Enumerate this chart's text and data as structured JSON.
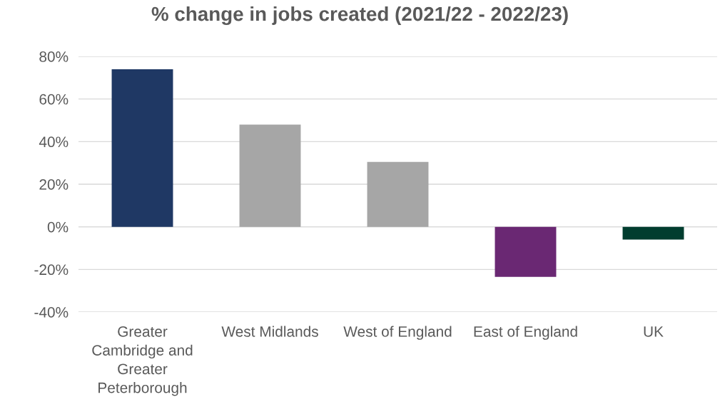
{
  "chart_data": {
    "type": "bar",
    "title": "% change in jobs created (2021/22 - 2022/23)",
    "categories": [
      "Greater\nCambridge and\nGreater\nPeterborough",
      "West Midlands",
      "West of England",
      "East of England",
      "UK"
    ],
    "values": [
      74,
      48,
      30.5,
      -23.5,
      -6
    ],
    "colors": [
      "#1f3864",
      "#a6a6a6",
      "#a6a6a6",
      "#6a2873",
      "#013d2f"
    ],
    "ylim": [
      -40,
      80
    ],
    "yticks": [
      {
        "value": -40,
        "label": "-40%"
      },
      {
        "value": -20,
        "label": "-20%"
      },
      {
        "value": 0,
        "label": "0%"
      },
      {
        "value": 20,
        "label": "20%"
      },
      {
        "value": 40,
        "label": "40%"
      },
      {
        "value": 60,
        "label": "60%"
      },
      {
        "value": 80,
        "label": "80%"
      }
    ],
    "grid": "y",
    "legend": false
  }
}
